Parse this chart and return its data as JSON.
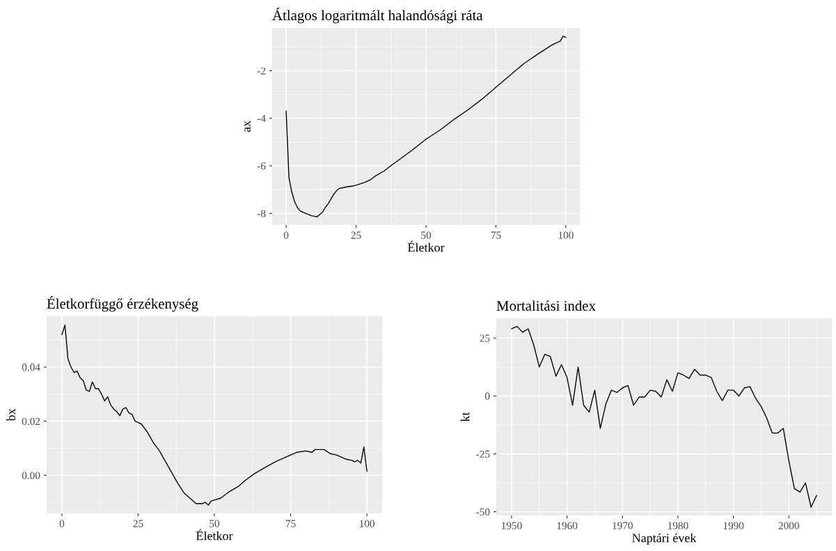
{
  "chart_data": [
    {
      "type": "line",
      "title": "Átlagos logaritmált halandósági ráta",
      "xlabel": "Életkor",
      "ylabel": "ax",
      "grid": true,
      "xlim": [
        -5,
        105
      ],
      "ylim": [
        -8.49,
        -0.2
      ],
      "xticks": [
        0,
        25,
        50,
        75,
        100
      ],
      "yticks": [
        -8,
        -6,
        -4,
        -2
      ],
      "series": [
        {
          "color": "#000000",
          "x": [
            0,
            1,
            2,
            3,
            4,
            5,
            6,
            7,
            8,
            9,
            10,
            11,
            12,
            13,
            14,
            15,
            16,
            17,
            18,
            19,
            20,
            22,
            24,
            26,
            28,
            30,
            32,
            35,
            38,
            40,
            45,
            50,
            55,
            60,
            65,
            70,
            75,
            80,
            85,
            90,
            95,
            98,
            99,
            100
          ],
          "values": [
            -3.7,
            -6.5,
            -7.1,
            -7.5,
            -7.75,
            -7.9,
            -7.95,
            -8.0,
            -8.05,
            -8.1,
            -8.12,
            -8.15,
            -8.05,
            -7.95,
            -7.75,
            -7.6,
            -7.4,
            -7.2,
            -7.05,
            -6.95,
            -6.93,
            -6.88,
            -6.85,
            -6.78,
            -6.7,
            -6.6,
            -6.42,
            -6.22,
            -5.95,
            -5.78,
            -5.35,
            -4.88,
            -4.5,
            -4.05,
            -3.65,
            -3.2,
            -2.7,
            -2.2,
            -1.7,
            -1.3,
            -0.92,
            -0.75,
            -0.55,
            -0.6
          ]
        }
      ]
    },
    {
      "type": "line",
      "title": "Életkorfüggő érzékenység",
      "xlabel": "Életkor",
      "ylabel": "bx",
      "grid": true,
      "xlim": [
        -5,
        105
      ],
      "ylim": [
        -0.0141,
        0.0588
      ],
      "xticks": [
        0,
        25,
        50,
        75,
        100
      ],
      "yticks": [
        {
          "value": 0,
          "label": "0.00"
        },
        {
          "value": 0.02,
          "label": "0.02"
        },
        {
          "value": 0.04,
          "label": "0.04"
        }
      ],
      "series": [
        {
          "color": "#000000",
          "x": [
            0,
            1,
            2,
            3,
            4,
            5,
            6,
            7,
            8,
            9,
            10,
            11,
            12,
            13,
            14,
            15,
            16,
            17,
            18,
            19,
            20,
            21,
            22,
            23,
            24,
            25,
            26,
            28,
            30,
            32,
            34,
            36,
            38,
            40,
            42,
            44,
            46,
            47,
            48,
            49,
            52,
            55,
            58,
            60,
            63,
            66,
            70,
            74,
            77,
            80,
            82,
            83,
            86,
            88,
            90,
            93,
            95,
            96,
            97,
            98,
            99,
            100
          ],
          "values": [
            0.052,
            0.0555,
            0.043,
            0.04,
            0.038,
            0.0385,
            0.036,
            0.035,
            0.0315,
            0.031,
            0.0345,
            0.032,
            0.032,
            0.03,
            0.0275,
            0.029,
            0.026,
            0.0245,
            0.0235,
            0.022,
            0.0245,
            0.025,
            0.023,
            0.0225,
            0.02,
            0.0195,
            0.019,
            0.016,
            0.012,
            0.009,
            0.005,
            0.001,
            -0.003,
            -0.0065,
            -0.0085,
            -0.0105,
            -0.0105,
            -0.01,
            -0.011,
            -0.0095,
            -0.0085,
            -0.006,
            -0.004,
            -0.002,
            0.0005,
            0.0025,
            0.005,
            0.007,
            0.0085,
            0.009,
            0.0085,
            0.0095,
            0.0095,
            0.008,
            0.0075,
            0.006,
            0.0055,
            0.005,
            0.0055,
            0.0045,
            0.0105,
            0.0015
          ]
        }
      ]
    },
    {
      "type": "line",
      "title": "Mortalitási index",
      "xlabel": "Naptári évek",
      "ylabel": "kt",
      "grid": true,
      "xlim": [
        1947.25,
        2007.75
      ],
      "ylim": [
        -51.6,
        33.5
      ],
      "xticks": [
        1950,
        1960,
        1970,
        1980,
        1990,
        2000
      ],
      "yticks": [
        -50,
        -25,
        0,
        25
      ],
      "series": [
        {
          "color": "#000000",
          "x": [
            1950,
            1951,
            1952,
            1953,
            1954,
            1955,
            1956,
            1957,
            1958,
            1959,
            1960,
            1961,
            1962,
            1963,
            1964,
            1965,
            1966,
            1967,
            1968,
            1969,
            1970,
            1971,
            1972,
            1973,
            1974,
            1975,
            1976,
            1977,
            1978,
            1979,
            1980,
            1981,
            1982,
            1983,
            1984,
            1985,
            1986,
            1987,
            1988,
            1989,
            1990,
            1991,
            1992,
            1993,
            1994,
            1995,
            1996,
            1997,
            1998,
            1999,
            2000,
            2001,
            2002,
            2003,
            2004,
            2005
          ],
          "values": [
            29,
            30,
            27.5,
            29,
            22,
            12.5,
            18,
            17,
            8.5,
            13.5,
            8,
            -4,
            12.5,
            -4,
            -7,
            2.5,
            -14,
            -3.5,
            2.5,
            1.5,
            3.5,
            4.5,
            -4,
            -0.5,
            -0.5,
            2.5,
            2,
            -0.5,
            7,
            2,
            10,
            9,
            7.5,
            11.5,
            9,
            9,
            8,
            2,
            -2,
            2.5,
            2.5,
            0,
            3.5,
            4,
            -1,
            -4.5,
            -9.5,
            -16,
            -16,
            -14,
            -28,
            -40,
            -41.5,
            -37.5,
            -48,
            -43
          ]
        }
      ]
    }
  ]
}
